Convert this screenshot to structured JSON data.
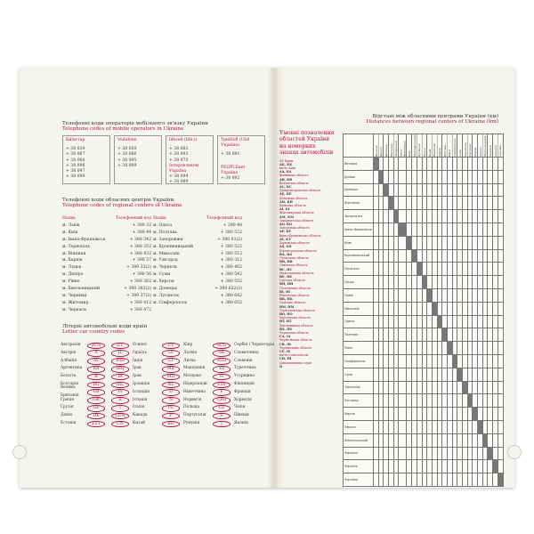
{
  "left": {
    "mobile_title_ua": "Телефонні коди операторів мобільного зв'язку України",
    "mobile_title_en": "Telephone codes of mobile operators in Ukraine",
    "operators": [
      {
        "name": "Київстар",
        "codes": [
          "+ 38 039",
          "+ 38 067",
          "+ 38 068",
          "+ 38 096",
          "+ 38 097",
          "+ 38 098"
        ]
      },
      {
        "name": "Vodafone",
        "codes": [
          "+ 38 050",
          "+ 38 066",
          "+ 38 095",
          "+ 38 099"
        ]
      },
      {
        "name": "lifecell (life:))",
        "codes": [
          "+ 38 063",
          "+ 38 093",
          "+ 38 073"
        ],
        "sub": "Інтертелеком Україна",
        "sub_codes": [
          "+ 38 094",
          "+ 38 089"
        ]
      },
      {
        "name": "ТриМоб (Utel Україна)",
        "codes": [
          "+ 38 091"
        ],
        "sub": "PEOPLEnet Україна",
        "sub_codes": [
          "+ 38 092"
        ]
      }
    ],
    "regional_title_ua": "Телефонні коди обласних центрів України",
    "regional_title_en": "Telephone codes of regional centers of Ukraine",
    "col_name": "Назва",
    "col_code": "Телефонний код",
    "regional_left": [
      [
        "м. Львів",
        "+ 380 32"
      ],
      [
        "м. Київ",
        "+ 380 44"
      ],
      [
        "м. Івано-Франківськ",
        "+ 380 342"
      ],
      [
        "м. Тернопіль",
        "+ 380 352"
      ],
      [
        "м. Вінниця",
        "+ 380 432"
      ],
      [
        "м. Харків",
        "+ 380 57"
      ],
      [
        "м. Луцьк",
        "+ 380 33(2)"
      ],
      [
        "м. Дніпро",
        "+ 380 56"
      ],
      [
        "м. Рівне",
        "+ 380 362"
      ],
      [
        "м. Хмельницький",
        "+ 380 382(2)"
      ],
      [
        "м. Чернівці",
        "+ 380 37(2)"
      ],
      [
        "м. Житомир",
        "+ 380 412"
      ],
      [
        "м. Черкаси",
        "+ 380 472"
      ]
    ],
    "regional_right": [
      [
        "м. Одеса",
        "+ 380 48"
      ],
      [
        "м. Полтава",
        "+ 380 532"
      ],
      [
        "м. Запоріжжя",
        "+ 380 61(2)"
      ],
      [
        "м. Кропивницький",
        "+ 380 522"
      ],
      [
        "м. Миколаїв",
        "+ 380 512"
      ],
      [
        "м. Ужгород",
        "+ 380 312"
      ],
      [
        "м. Чернігів",
        "+ 380 462"
      ],
      [
        "м. Суми",
        "+ 380 542"
      ],
      [
        "м. Херсон",
        "+ 380 552"
      ],
      [
        "м. Донецьк",
        "+ 380 622(3)"
      ],
      [
        "м. Луганськ",
        "+ 380 642"
      ],
      [
        "м. Сімферополь",
        "+ 380 652"
      ]
    ],
    "country_title_ua": "Літерні автомобільні коди країн",
    "country_title_en": "Letter car country codes",
    "countries": [
      [
        [
          "AUS",
          "Австралія"
        ],
        [
          "A",
          "Австрія"
        ],
        [
          "AL",
          "Албанія"
        ],
        [
          "RA",
          "Аргентина"
        ],
        [
          "B",
          "Бельгія"
        ],
        [
          "BG",
          "Болгарія"
        ],
        [
          "GB",
          "Велика Британія"
        ],
        [
          "GR",
          "Греція"
        ],
        [
          "GE",
          "Грузія"
        ],
        [
          "DK",
          "Данія"
        ],
        [
          "EST",
          "Естонія"
        ]
      ],
      [
        [
          "ET",
          "Єгипет"
        ],
        [
          "IL",
          "Ізраїль"
        ],
        [
          "IND",
          "Індія"
        ],
        [
          "IRQ",
          "Ірак"
        ],
        [
          "IR",
          "Іран"
        ],
        [
          "IRL",
          "Ірландія"
        ],
        [
          "IS",
          "Ісландія"
        ],
        [
          "E",
          "Іспанія"
        ],
        [
          "I",
          "Італія"
        ],
        [
          "CDN",
          "Канада"
        ],
        [
          "CN",
          "Китай"
        ]
      ],
      [
        [
          "CY",
          "Кіпр"
        ],
        [
          "LV",
          "Латвія"
        ],
        [
          "LT",
          "Литва"
        ],
        [
          "MK",
          "Македонія"
        ],
        [
          "MD",
          "Молдова"
        ],
        [
          "NL",
          "Нідерланди"
        ],
        [
          "D",
          "Німеччина"
        ],
        [
          "N",
          "Норвегія"
        ],
        [
          "PL",
          "Польща"
        ],
        [
          "P",
          "Португалія"
        ],
        [
          "RO",
          "Румунія"
        ]
      ],
      [
        [
          "SCG",
          "Сербія і Чорногорія"
        ],
        [
          "SK",
          "Словаччина"
        ],
        [
          "SLO",
          "Словенія"
        ],
        [
          "TR",
          "Туреччина"
        ],
        [
          "H",
          "Угорщина"
        ],
        [
          "FIN",
          "Фінляндія"
        ],
        [
          "F",
          "Франція"
        ],
        [
          "CRO",
          "Хорватія"
        ],
        [
          "CZ",
          "Чехія"
        ],
        [
          "S",
          "Швеція"
        ],
        [
          "J",
          "Японія"
        ]
      ]
    ]
  },
  "right": {
    "plates_title": "Умовні позначення областей України на номерних знаках автомобілів",
    "plates": [
      [
        "АР Крим",
        "AK, KK"
      ],
      [
        "місто Київ",
        "AA, KA"
      ],
      [
        "Вінницька область",
        "AB, KB"
      ],
      [
        "Волинська область",
        "AC, KC"
      ],
      [
        "Дніпропетровська область",
        "AE, KE"
      ],
      [
        "Донецька область",
        "AH, KH"
      ],
      [
        "Київська область",
        "AI, KI"
      ],
      [
        "Житомирська область",
        "AM, KM"
      ],
      [
        "Закарпатська область",
        "AO, KO"
      ],
      [
        "Запорізька область",
        "AP, KP"
      ],
      [
        "Івано-Франківська область",
        "AT, KT"
      ],
      [
        "Харківська область",
        "AX, KX"
      ],
      [
        "Кіровоградська область",
        "BA, HA"
      ],
      [
        "Луганська область",
        "BB, HB"
      ],
      [
        "Львівська область",
        "BC, HC"
      ],
      [
        "Миколаївська область",
        "BE, HE"
      ],
      [
        "Одеська область",
        "BH, HH"
      ],
      [
        "Полтавська область",
        "BI, HI"
      ],
      [
        "Рівненська область",
        "BK, HK"
      ],
      [
        "Сумська область",
        "BM, HM"
      ],
      [
        "Тернопільська область",
        "BO, HO"
      ],
      [
        "Херсонська область",
        "BT, HT"
      ],
      [
        "Хмельницька область",
        "BX, HX"
      ],
      [
        "Черкаська область",
        "CA, IA"
      ],
      [
        "Чернігівська область",
        "CB, IB"
      ],
      [
        "Чернівецька область",
        "CE, IE"
      ],
      [
        "місто Севастополь",
        "CH, IH"
      ],
      [
        "Дипломатична серія",
        "D"
      ]
    ],
    "distance_title_ua": "Відстані між обласними центрами України (км)",
    "distance_title_en": "Distances between regional centers of Ukraine (km)",
    "cities": [
      "Вінниця",
      "Дніпро",
      "Донецьк",
      "Житомир",
      "Запоріжжя",
      "Івано-Франківськ",
      "Київ",
      "Кропивницький",
      "Луганськ",
      "Луцьк",
      "Львів",
      "Миколаїв",
      "Одеса",
      "Полтава",
      "Рівне",
      "Сімферополь",
      "Суми",
      "Тернопіль",
      "Ужгород",
      "Харків",
      "Херсон",
      "Хмельницький",
      "Черкаси",
      "Чернігів",
      "Чернівці"
    ]
  },
  "colors": {
    "accent": "#b0144a",
    "paper": "#f6f4ee"
  }
}
